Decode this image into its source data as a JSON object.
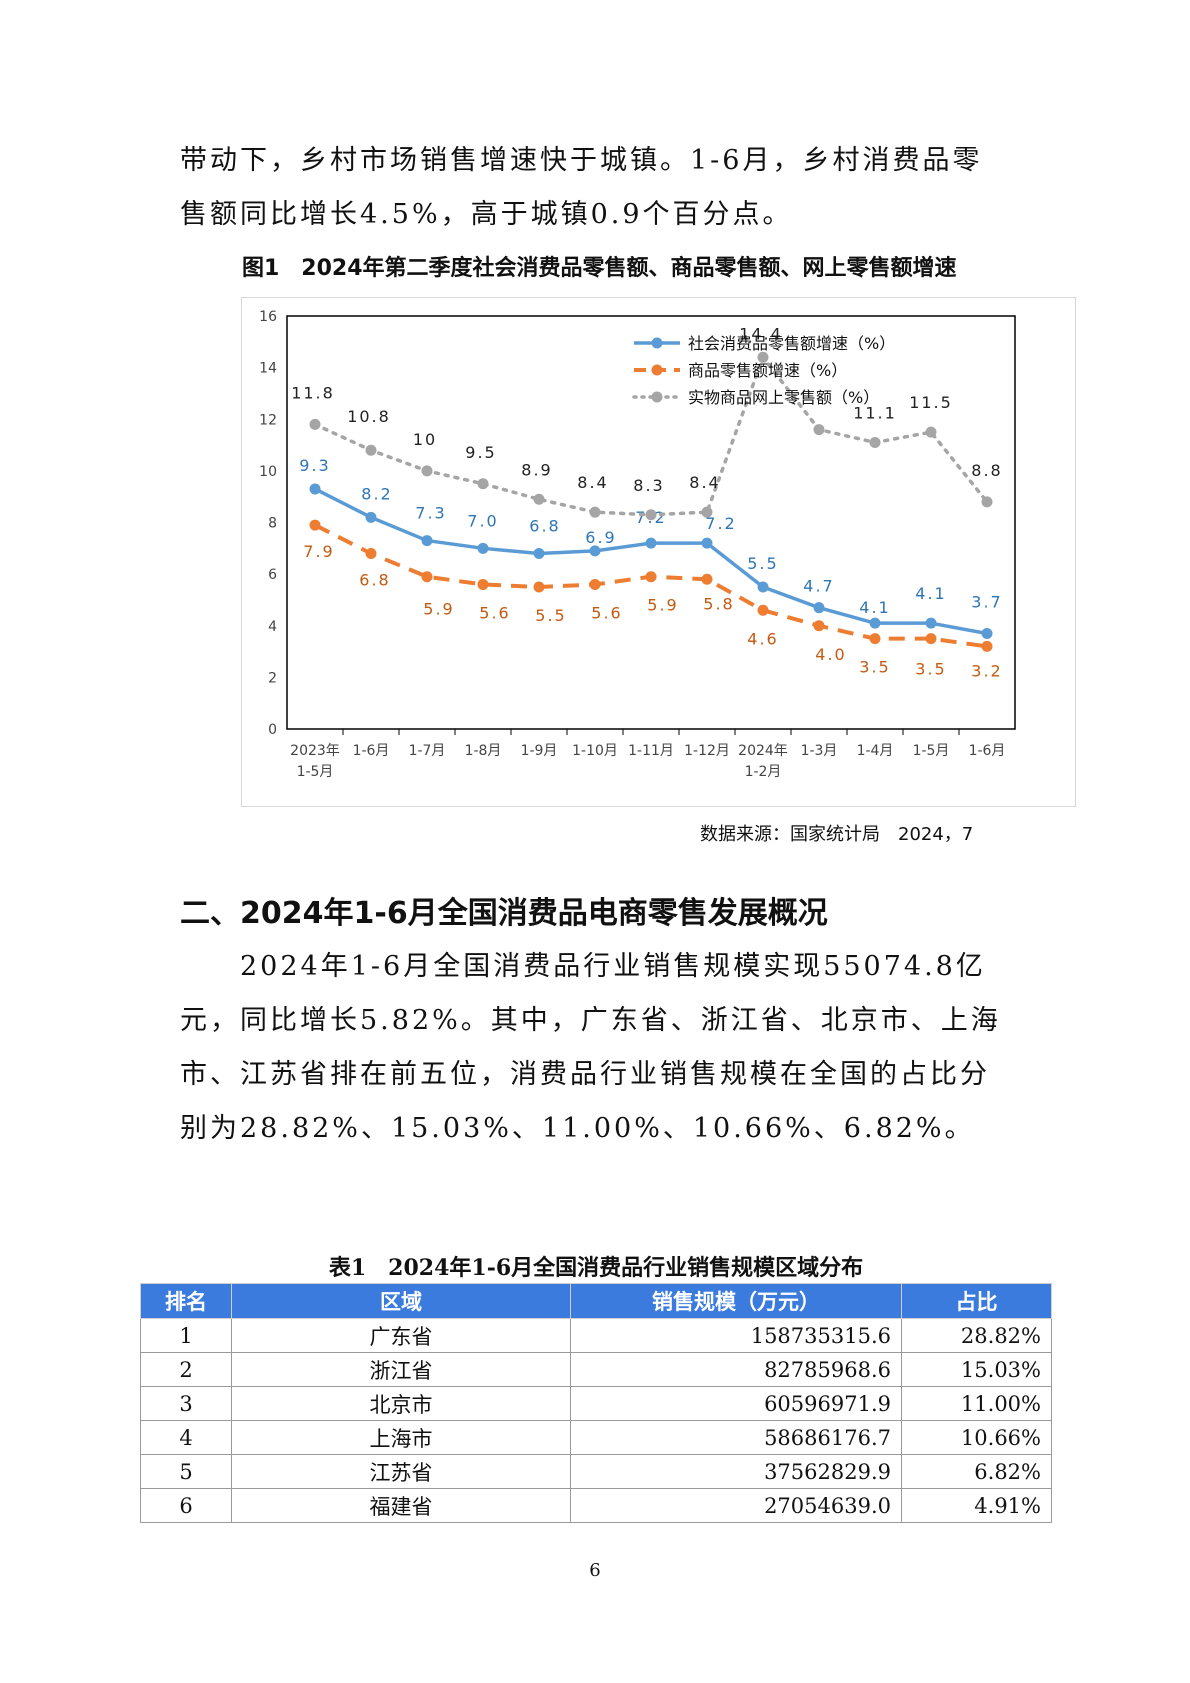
{
  "paragraph1": "带动下，乡村市场销售增速快于城镇。1-6月，乡村消费品零售额同比增长4.5%，高于城镇0.9个百分点。",
  "figure_title": "图1　2024年第二季度社会消费品零售额、商品零售额、网上零售额增速",
  "chart_data": {
    "type": "line",
    "categories": [
      [
        "2023年",
        "1-5月"
      ],
      [
        "1-6月"
      ],
      [
        "1-7月"
      ],
      [
        "1-8月"
      ],
      [
        "1-9月"
      ],
      [
        "1-10月"
      ],
      [
        "1-11月"
      ],
      [
        "1-12月"
      ],
      [
        "2024年",
        "1-2月"
      ],
      [
        "1-3月"
      ],
      [
        "1-4月"
      ],
      [
        "1-5月"
      ],
      [
        "1-6月"
      ]
    ],
    "ylim": [
      0,
      16
    ],
    "yticks": [
      0,
      2,
      4,
      6,
      8,
      10,
      12,
      14,
      16
    ],
    "legend_position": "top-right",
    "series": [
      {
        "name": "社会消费品零售额增速（%）",
        "color": "#5b9bd5",
        "style": "solid",
        "values": [
          9.3,
          8.2,
          7.3,
          7.0,
          6.8,
          6.9,
          7.2,
          7.2,
          5.5,
          4.7,
          4.1,
          4.1,
          3.7
        ],
        "labels": [
          "9.3",
          "8.2",
          "7.3",
          "7.0",
          "6.8",
          "6.9",
          "7.2",
          "7.2",
          "5.5",
          "4.7",
          "4.1",
          "4.1",
          "3.7"
        ]
      },
      {
        "name": "商品零售额增速（%）",
        "color": "#ed7d31",
        "style": "dashed",
        "values": [
          7.9,
          6.8,
          5.9,
          5.6,
          5.5,
          5.6,
          5.9,
          5.8,
          4.6,
          4.0,
          3.5,
          3.5,
          3.2
        ],
        "labels": [
          "7.9",
          "6.8",
          "5.9",
          "5.6",
          "5.5",
          "5.6",
          "5.9",
          "5.8",
          "4.6",
          "4.0",
          "3.5",
          "3.5",
          "3.2"
        ]
      },
      {
        "name": "实物商品网上零售额（%）",
        "color": "#a5a5a5",
        "style": "dotted",
        "values": [
          11.8,
          10.8,
          10,
          9.5,
          8.9,
          8.4,
          8.3,
          8.4,
          14.4,
          11.6,
          11.1,
          11.5,
          8.8
        ],
        "labels": [
          "11.8",
          "10.8",
          "10",
          "9.5",
          "8.9",
          "8.4",
          "8.3",
          "8.4",
          "14.4",
          "",
          "11.1",
          "11.5",
          "8.8"
        ]
      }
    ]
  },
  "source_note": "数据来源：国家统计局　2024，7",
  "section_heading": "二、2024年1-6月全国消费品电商零售发展概况",
  "paragraph2": "2024年1-6月全国消费品行业销售规模实现55074.8亿元，同比增长5.82%。其中，广东省、浙江省、北京市、上海市、江苏省排在前五位，消费品行业销售规模在全国的占比分别为28.82%、15.03%、11.00%、10.66%、6.82%。",
  "table_title": "表1　2024年1-6月全国消费品行业销售规模区域分布",
  "table": {
    "headers": [
      "排名",
      "区域",
      "销售规模（万元）",
      "占比"
    ],
    "rows": [
      [
        "1",
        "广东省",
        "158735315.6",
        "28.82%"
      ],
      [
        "2",
        "浙江省",
        "82785968.6",
        "15.03%"
      ],
      [
        "3",
        "北京市",
        "60596971.9",
        "11.00%"
      ],
      [
        "4",
        "上海市",
        "58686176.7",
        "10.66%"
      ],
      [
        "5",
        "江苏省",
        "37562829.9",
        "6.82%"
      ],
      [
        "6",
        "福建省",
        "27054639.0",
        "4.91%"
      ]
    ]
  },
  "page_number": "6"
}
